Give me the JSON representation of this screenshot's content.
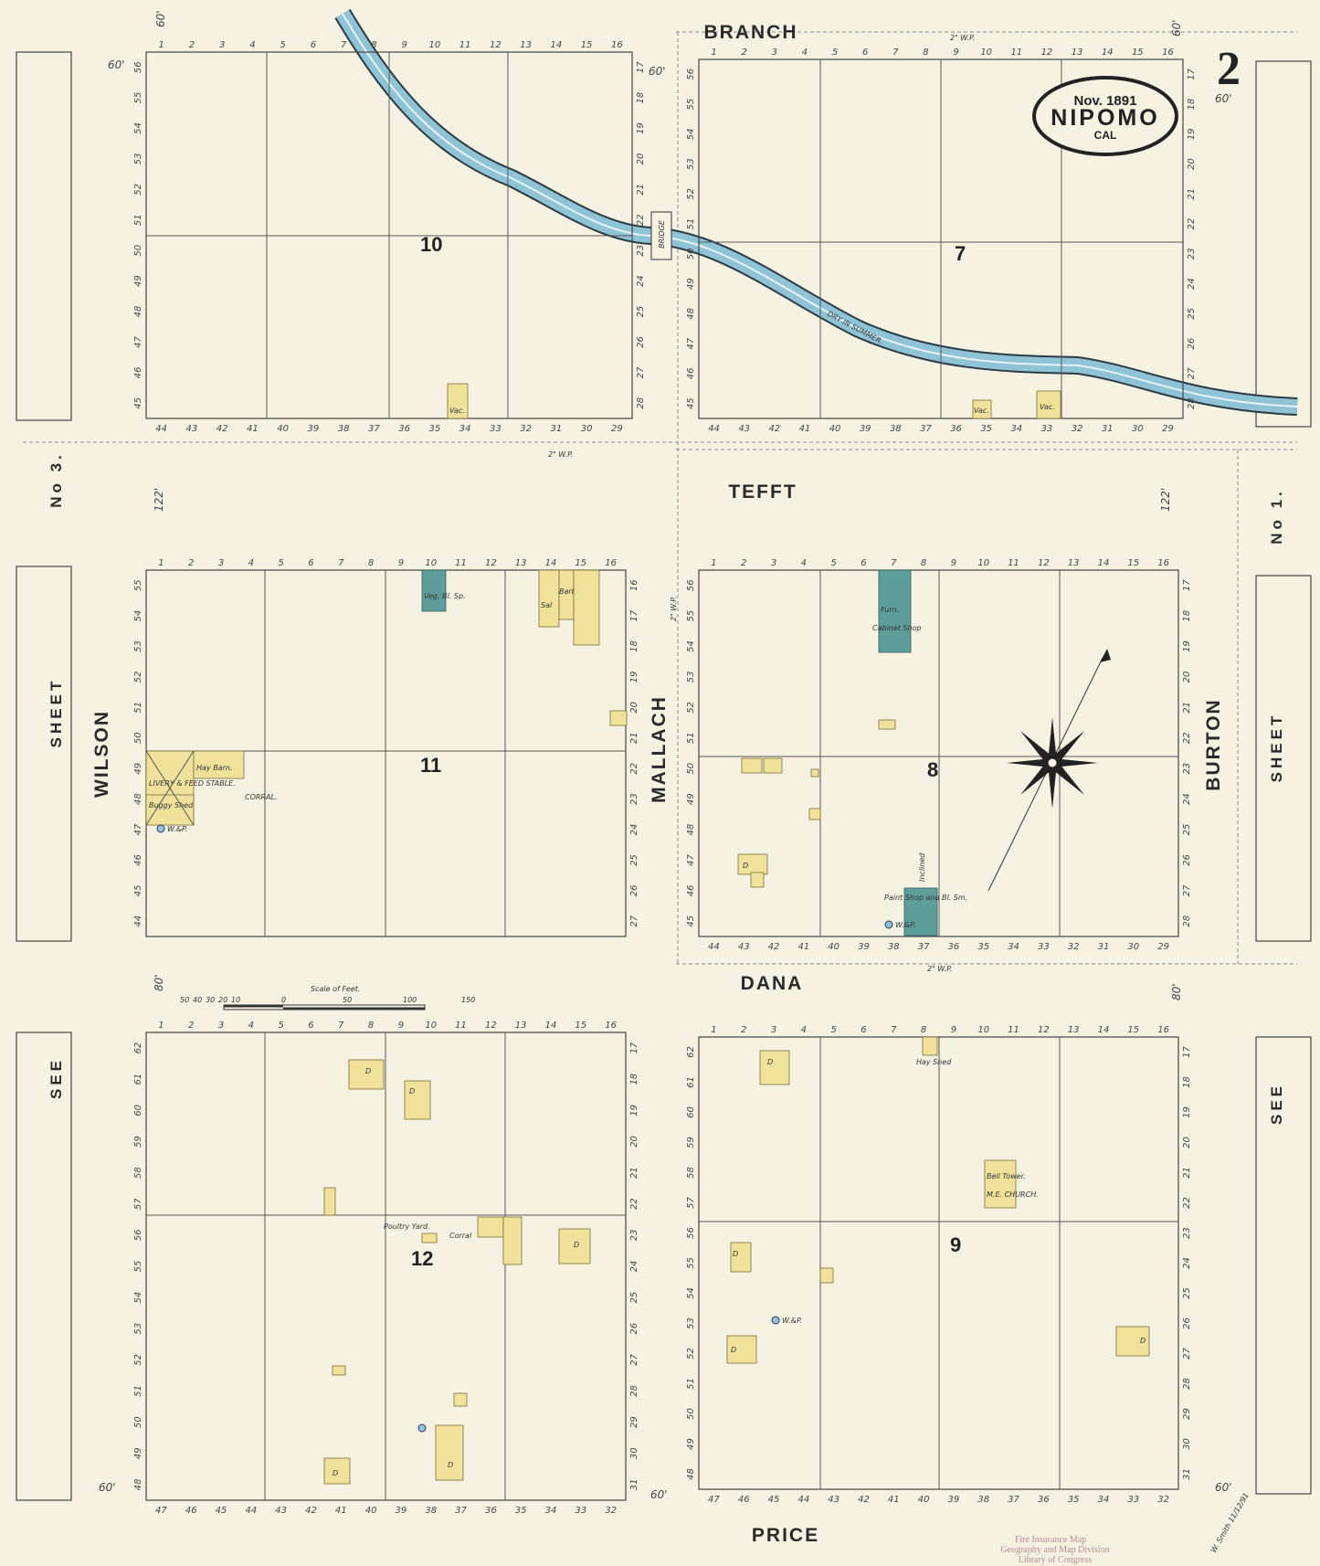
{
  "title": {
    "date": "Nov. 1891",
    "town": "NIPOMO",
    "state": "CAL",
    "sheet_number": "2"
  },
  "streets": {
    "branch": "BRANCH",
    "tefft": "TEFFT",
    "dana": "DANA",
    "price": "PRICE",
    "wilson": "WILSON",
    "mallach": "MALLACH",
    "burton": "BURTON"
  },
  "side_refs": {
    "left": {
      "see": "SEE",
      "sheet": "SHEET",
      "num": "No 3."
    },
    "right": {
      "see": "SEE",
      "sheet": "SHEET",
      "num": "No 1."
    }
  },
  "river": {
    "label": "DRY IN SUMMER.",
    "bridge": "BRIDGE",
    "color": "#8fc3d6"
  },
  "colors": {
    "frame": "#f0e19b",
    "brick": "#5e9e9a",
    "water": "#8fc3d6"
  },
  "dimensions": {
    "d60": "60'",
    "d122": "122'",
    "d80": "80'",
    "wp": "2\" W.P."
  },
  "scale": {
    "label": "Scale of Feet.",
    "ticks": [
      "50",
      "40",
      "30",
      "20",
      "10",
      "0",
      "50",
      "100",
      "150"
    ]
  },
  "blocks": [
    {
      "id": "10",
      "top": [
        "1",
        "2",
        "3",
        "4",
        "5",
        "6",
        "7",
        "8",
        "9",
        "10",
        "11",
        "12",
        "13",
        "14",
        "15",
        "16"
      ],
      "bottom": [
        "44",
        "43",
        "42",
        "41",
        "40",
        "39",
        "38",
        "37",
        "36",
        "35",
        "34",
        "33",
        "32",
        "31",
        "30",
        "29"
      ],
      "left": [
        "56",
        "55",
        "54",
        "53",
        "52",
        "51",
        "50",
        "49",
        "48",
        "47",
        "46",
        "45"
      ],
      "right": [
        "17",
        "18",
        "19",
        "20",
        "21",
        "22",
        "23",
        "24",
        "25",
        "26",
        "27",
        "28"
      ]
    },
    {
      "id": "7",
      "top": [
        "1",
        "2",
        "3",
        "4",
        "5",
        "6",
        "7",
        "8",
        "9",
        "10",
        "11",
        "12",
        "13",
        "14",
        "15",
        "16"
      ],
      "bottom": [
        "44",
        "43",
        "42",
        "41",
        "40",
        "39",
        "38",
        "37",
        "36",
        "35",
        "34",
        "33",
        "32",
        "31",
        "30",
        "29"
      ],
      "left": [
        "56",
        "55",
        "54",
        "53",
        "52",
        "51",
        "50",
        "49",
        "48",
        "47",
        "46",
        "45"
      ],
      "right": [
        "17",
        "18",
        "19",
        "20",
        "21",
        "22",
        "23",
        "24",
        "25",
        "26",
        "27",
        "28"
      ]
    },
    {
      "id": "11",
      "top": [
        "1",
        "2",
        "3",
        "4",
        "5",
        "6",
        "7",
        "8",
        "9",
        "10",
        "11",
        "12",
        "13",
        "14",
        "15",
        "16"
      ],
      "bottom": [],
      "left": [
        "55",
        "54",
        "53",
        "52",
        "51",
        "50",
        "49",
        "48",
        "47",
        "46",
        "45",
        "44"
      ],
      "right": [
        "16",
        "17",
        "18",
        "19",
        "20",
        "21",
        "22",
        "23",
        "24",
        "25",
        "26",
        "27"
      ]
    },
    {
      "id": "8",
      "top": [
        "1",
        "2",
        "3",
        "4",
        "5",
        "6",
        "7",
        "8",
        "9",
        "10",
        "11",
        "12",
        "13",
        "14",
        "15",
        "16"
      ],
      "bottom": [
        "44",
        "43",
        "42",
        "41",
        "40",
        "39",
        "38",
        "37",
        "36",
        "35",
        "34",
        "33",
        "32",
        "31",
        "30",
        "29"
      ],
      "left": [
        "56",
        "55",
        "54",
        "53",
        "52",
        "51",
        "50",
        "49",
        "48",
        "47",
        "46",
        "45"
      ],
      "right": [
        "17",
        "18",
        "19",
        "20",
        "21",
        "22",
        "23",
        "24",
        "25",
        "26",
        "27",
        "28"
      ]
    },
    {
      "id": "12",
      "top": [
        "1",
        "2",
        "3",
        "4",
        "5",
        "6",
        "7",
        "8",
        "9",
        "10",
        "11",
        "12",
        "13",
        "14",
        "15",
        "16"
      ],
      "bottom": [
        "47",
        "46",
        "45",
        "44",
        "43",
        "42",
        "41",
        "40",
        "39",
        "38",
        "37",
        "36",
        "35",
        "34",
        "33",
        "32"
      ],
      "left": [
        "62",
        "61",
        "60",
        "59",
        "58",
        "57",
        "56",
        "55",
        "54",
        "53",
        "52",
        "51",
        "50",
        "49",
        "48"
      ],
      "right": [
        "17",
        "18",
        "19",
        "20",
        "21",
        "22",
        "23",
        "24",
        "25",
        "26",
        "27",
        "28",
        "29",
        "30",
        "31"
      ]
    },
    {
      "id": "9",
      "top": [
        "1",
        "2",
        "3",
        "4",
        "5",
        "6",
        "7",
        "8",
        "9",
        "10",
        "11",
        "12",
        "13",
        "14",
        "15",
        "16"
      ],
      "bottom": [
        "47",
        "46",
        "45",
        "44",
        "43",
        "42",
        "41",
        "40",
        "39",
        "38",
        "37",
        "36",
        "35",
        "34",
        "33",
        "32"
      ],
      "left": [
        "62",
        "61",
        "60",
        "59",
        "58",
        "57",
        "56",
        "55",
        "54",
        "53",
        "52",
        "51",
        "50",
        "49",
        "48"
      ],
      "right": [
        "17",
        "18",
        "19",
        "20",
        "21",
        "22",
        "23",
        "24",
        "25",
        "26",
        "27",
        "28",
        "29",
        "30",
        "31"
      ]
    }
  ],
  "labels": {
    "livery": "LIVERY & FEED STABLE.",
    "hay_barn": "Hay Barn.",
    "buggy_shed": "Buggy Shed",
    "corral": "CORRAL.",
    "wp": "W.&P.",
    "veg": "Veg. Bl. Sp.",
    "sal": "Sal",
    "barber": "Barber",
    "furn": "Furn.",
    "cabinet": "Cabinet Shop",
    "paint": "Paint Shop and Bl. Sm.",
    "inclined": "Inclined",
    "poultry": "Poultry Yard.",
    "corral2": "Corral",
    "bell": "Bell Tower.",
    "church": "M.E. CHURCH.",
    "hay_shed": "Hay Shed",
    "vac": "Vac.",
    "d": "D"
  },
  "stamp": {
    "line1": "Fire Insurance Map",
    "line2": "Geography and Map Division",
    "line3": "Library of Congress"
  },
  "signature": "W. Smith 11/12/91"
}
